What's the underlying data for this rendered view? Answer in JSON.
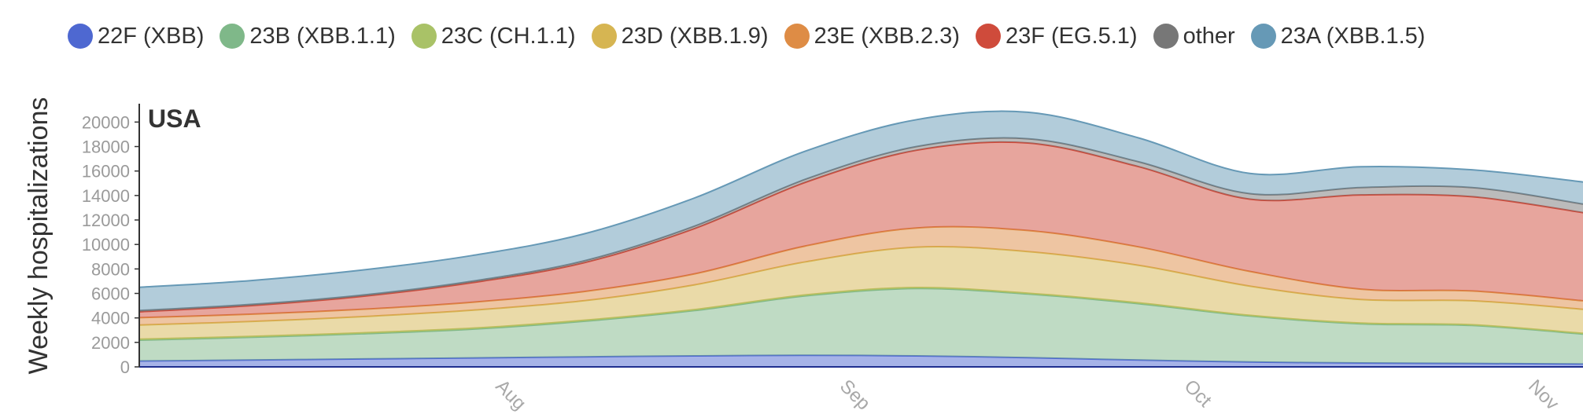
{
  "chart_data": {
    "type": "area",
    "stacked": true,
    "title": "USA",
    "ylabel": "Weekly hospitalizations",
    "ylim": [
      0,
      21500
    ],
    "yticks": [
      0,
      2000,
      4000,
      6000,
      8000,
      10000,
      12000,
      14000,
      16000,
      18000,
      20000
    ],
    "xticks": [
      {
        "label": "Aug",
        "x": 32
      },
      {
        "label": "Sep",
        "x": 63
      },
      {
        "label": "Oct",
        "x": 94
      },
      {
        "label": "Nov",
        "x": 125
      }
    ],
    "xlim": [
      0,
      130
    ],
    "legend_position": "top",
    "x": [
      0,
      10,
      20,
      30,
      40,
      50,
      60,
      70,
      80,
      90,
      100,
      110,
      120,
      130
    ],
    "series": [
      {
        "name": "22F (XBB)",
        "color": "#4e68d1",
        "values": [
          480,
          560,
          650,
          730,
          820,
          900,
          950,
          900,
          750,
          560,
          400,
          320,
          280,
          230
        ]
      },
      {
        "name": "23B (XBB.1.1)",
        "color": "#7fb889",
        "values": [
          1700,
          1850,
          2050,
          2350,
          2900,
          3700,
          4850,
          5500,
          5200,
          4600,
          3750,
          3200,
          3100,
          2450
        ]
      },
      {
        "name": "23C (CH.1.1)",
        "color": "#a9c267",
        "values": [
          80,
          80,
          80,
          80,
          80,
          80,
          80,
          80,
          70,
          70,
          60,
          60,
          60,
          60
        ]
      },
      {
        "name": "23D (XBB.1.9)",
        "color": "#d6b552",
        "values": [
          1160,
          1210,
          1320,
          1470,
          1600,
          2020,
          2700,
          3300,
          3400,
          3070,
          2390,
          1920,
          1960,
          1960
        ]
      },
      {
        "name": "23E (XBB.2.3)",
        "color": "#de8c45",
        "values": [
          600,
          600,
          600,
          650,
          750,
          900,
          1300,
          1570,
          1720,
          1500,
          1200,
          850,
          800,
          700
        ]
      },
      {
        "name": "23F (EG.5.1)",
        "color": "#cf4b3b",
        "values": [
          480,
          700,
          1050,
          1600,
          2350,
          3700,
          5200,
          6350,
          7150,
          6550,
          5900,
          7700,
          7700,
          7200
        ]
      },
      {
        "name": "other",
        "color": "#777777",
        "values": [
          100,
          100,
          100,
          120,
          150,
          200,
          250,
          300,
          350,
          400,
          450,
          600,
          750,
          700
        ]
      },
      {
        "name": "23A (XBB.1.5)",
        "color": "#6699b6",
        "values": [
          1900,
          1950,
          2050,
          2100,
          2200,
          2300,
          2300,
          2200,
          2160,
          1950,
          1650,
          1700,
          1450,
          1800
        ]
      }
    ]
  }
}
